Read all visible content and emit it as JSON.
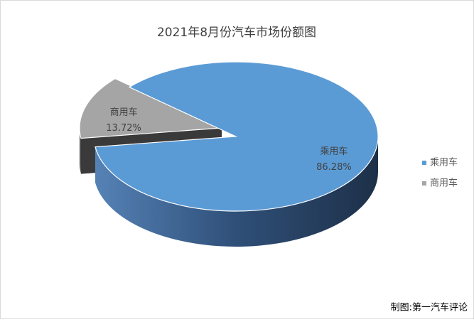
{
  "chart_data": {
    "type": "pie3d",
    "title": "2021年8月份汽车市场份额图",
    "categories": [
      "乘用车",
      "商用车"
    ],
    "values": [
      86.28,
      13.72
    ],
    "value_labels": [
      "86.28%",
      "13.72%"
    ],
    "colors": [
      "#5b9bd5",
      "#a5a5a5"
    ],
    "legend": "right"
  },
  "source": "制图:第一汽车评论"
}
